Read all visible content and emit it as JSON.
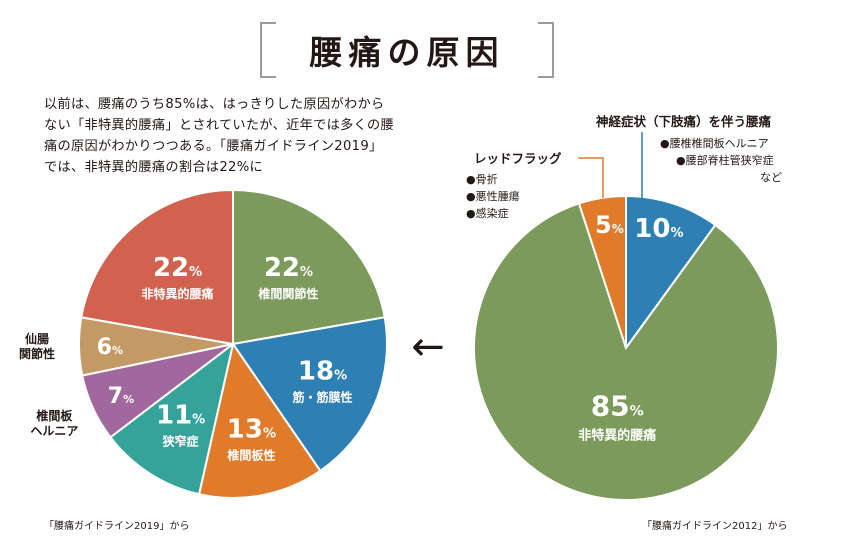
{
  "title": "腰痛の原因",
  "intro": "以前は、腰痛のうち85%は、はっきりした原因がわからない「非特異的腰痛」とされていたが、近年では多くの腰痛の原因がわかりつつある。「腰痛ガイドライン2019」では、非特異的腰痛の割合は22%に",
  "sources": {
    "left": "「腰痛ガイドライン2019」から",
    "right": "「腰痛ガイドライン2012」から"
  },
  "arrow": "←",
  "chart_data": [
    {
      "type": "pie",
      "source": "「腰痛ガイドライン2019」から",
      "slices": [
        {
          "label": "椎間関節性",
          "value": 22,
          "value_text": "22",
          "unit": "%",
          "color": "#7b9a5b"
        },
        {
          "label": "筋・筋膜性",
          "value": 18,
          "value_text": "18",
          "unit": "%",
          "color": "#2e7fb4"
        },
        {
          "label": "椎間板性",
          "value": 13,
          "value_text": "13",
          "unit": "%",
          "color": "#e07b2c"
        },
        {
          "label": "狭窄症",
          "value": 11,
          "value_text": "11",
          "unit": "%",
          "color": "#36a39a"
        },
        {
          "label": "椎間板\nヘルニア",
          "value": 7,
          "value_text": "7",
          "unit": "%",
          "color": "#a1689e"
        },
        {
          "label": "仙腸\n関節性",
          "value": 6,
          "value_text": "6",
          "unit": "%",
          "color": "#c39a66"
        },
        {
          "label": "非特異的腰痛",
          "value": 22,
          "value_text": "22",
          "unit": "%",
          "color": "#d0624f"
        }
      ]
    },
    {
      "type": "pie",
      "source": "「腰痛ガイドライン2012」から",
      "slices": [
        {
          "label": "神経症状（下肢痛）を伴う腰痛",
          "value": 10,
          "value_text": "10",
          "unit": "%",
          "color": "#2e7fb4",
          "items": [
            "●腰椎椎間板ヘルニア",
            "●腰部脊柱管狭窄症",
            "など"
          ]
        },
        {
          "label": "非特異的腰痛",
          "value": 85,
          "value_text": "85",
          "unit": "%",
          "color": "#7b9a5b"
        },
        {
          "label": "レッドフラッグ",
          "value": 5,
          "value_text": "5",
          "unit": "%",
          "color": "#e07b2c",
          "items": [
            "●骨折",
            "●悪性腫瘍",
            "●感染症"
          ]
        }
      ]
    }
  ]
}
